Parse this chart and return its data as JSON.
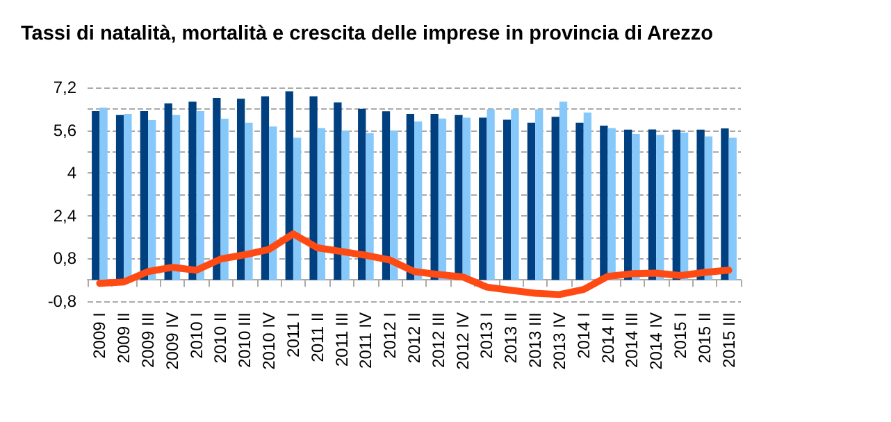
{
  "chart_data": {
    "type": "bar",
    "title": "Tassi di natalità, mortalità e crescita delle imprese in provincia di Arezzo",
    "categories": [
      "2009 I",
      "2009 II",
      "2009 III",
      "2009 IV",
      "2010 I",
      "2010 II",
      "2010 III",
      "2010 IV",
      "2011 I",
      "2011 II",
      "2011 III",
      "2011 IV",
      "2012 I",
      "2012 II",
      "2012 III",
      "2012 IV",
      "2013 I",
      "2013 II",
      "2013 III",
      "2013 IV",
      "2014 I",
      "2014 II",
      "2014 III",
      "2014 IV",
      "2015 I",
      "2015 II",
      "2015 III"
    ],
    "series": [
      {
        "color": "#004080",
        "values": [
          6.32,
          6.17,
          6.32,
          6.6,
          6.67,
          6.81,
          6.78,
          6.87,
          7.06,
          6.87,
          6.64,
          6.4,
          6.31,
          6.21,
          6.21,
          6.17,
          6.07,
          5.99,
          5.88,
          6.1,
          5.88,
          5.77,
          5.62,
          5.63,
          5.62,
          5.62,
          5.67
        ]
      },
      {
        "color": "#87c8fa",
        "values": [
          6.45,
          6.21,
          5.98,
          6.17,
          6.32,
          6.03,
          5.88,
          5.74,
          5.32,
          5.68,
          5.59,
          5.49,
          5.59,
          5.93,
          6.04,
          6.07,
          6.38,
          6.38,
          6.38,
          6.67,
          6.26,
          5.68,
          5.46,
          5.43,
          5.51,
          5.37,
          5.32
        ]
      },
      {
        "type": "line",
        "color": "#ff4a14",
        "values": [
          -0.13,
          -0.08,
          0.31,
          0.47,
          0.36,
          0.78,
          0.94,
          1.14,
          1.72,
          1.2,
          1.06,
          0.92,
          0.74,
          0.31,
          0.2,
          0.11,
          -0.27,
          -0.39,
          -0.5,
          -0.55,
          -0.36,
          0.13,
          0.23,
          0.25,
          0.16,
          0.28,
          0.36
        ]
      }
    ],
    "ylim": [
      -0.8,
      7.2
    ],
    "yticks": [
      {
        "value": -0.8,
        "label": "-0,8"
      },
      {
        "value": 0,
        "label": null
      },
      {
        "value": 0.8,
        "label": "0,8"
      },
      {
        "value": 1.6,
        "label": null
      },
      {
        "value": 2.4,
        "label": "2,4"
      },
      {
        "value": 3.2,
        "label": null
      },
      4,
      {
        "value": 4.8,
        "label": null
      },
      {
        "value": 5.6,
        "label": "5,6"
      },
      {
        "value": 6.4,
        "label": null
      },
      {
        "value": 7.2,
        "label": "7,2"
      }
    ],
    "grid": "y",
    "marker": "none",
    "line_style": "solid"
  }
}
